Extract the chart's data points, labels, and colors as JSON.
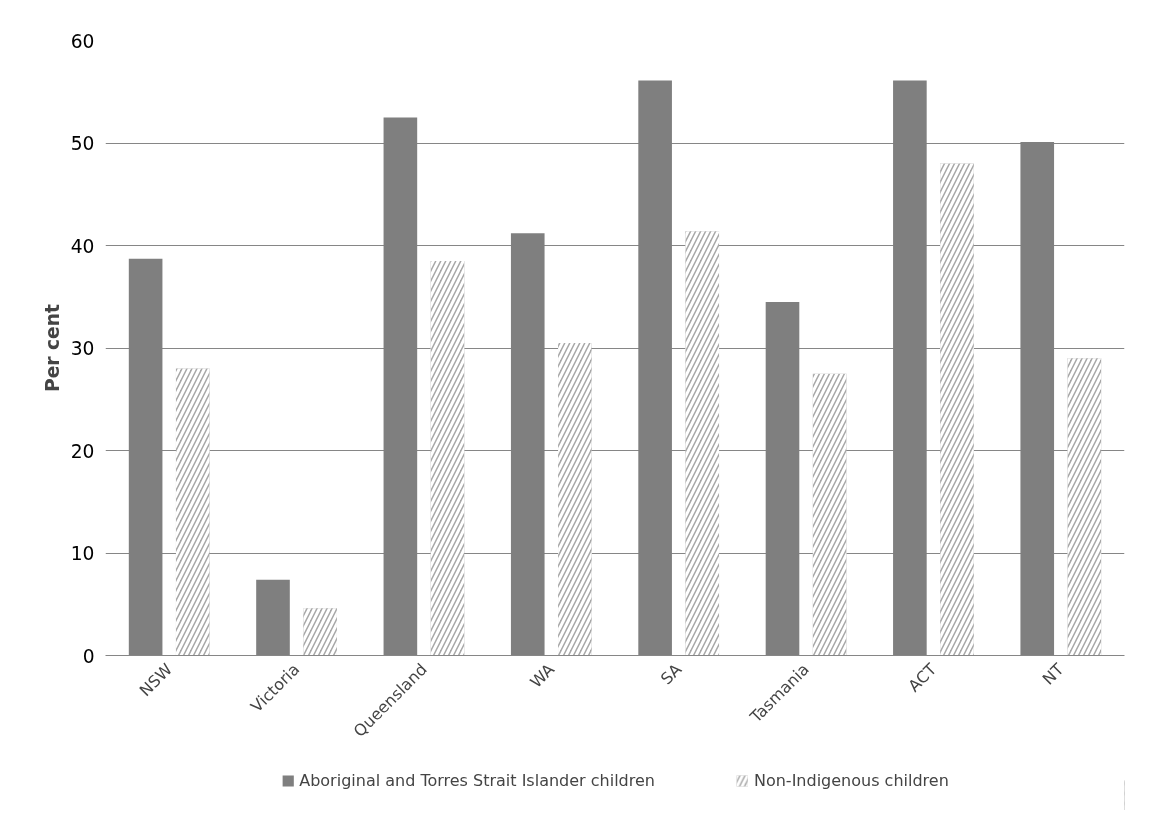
{
  "chart_data": {
    "type": "bar",
    "ylabel": "Per cent",
    "categories": [
      "NSW",
      "Victoria",
      "Queensland",
      "WA",
      "SA",
      "Tasmania",
      "ACT",
      "NT"
    ],
    "series": [
      {
        "name": "Aboriginal and Torres Strait Islander children",
        "color": "#7f7f7f",
        "values": [
          38.7,
          7.4,
          52.5,
          41.2,
          56.1,
          34.5,
          56.1,
          50.1
        ]
      },
      {
        "name": "Non-Indigenous children",
        "color": "#a6a6a6",
        "values": [
          28.0,
          4.6,
          38.5,
          30.5,
          41.4,
          27.5,
          48.0,
          29.0
        ]
      }
    ],
    "ylim": [
      0,
      60
    ],
    "yticks": [
      0,
      10,
      20,
      30,
      40,
      50,
      60
    ],
    "grid": "y",
    "legend": "bottom"
  }
}
